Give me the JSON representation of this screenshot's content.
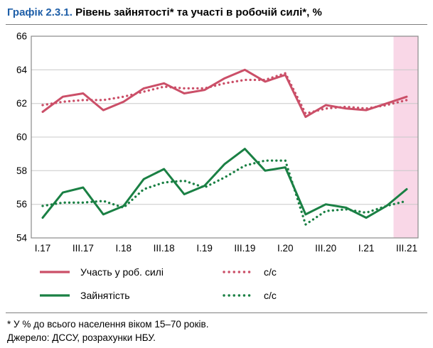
{
  "header": {
    "prefix": "Графік 2.3.1.",
    "title": " Рівень зайнятості* та участі в робочій силі*, %"
  },
  "legend": [
    {
      "label": "Участь у роб. силі",
      "style": "solid",
      "color": "#cb4f68"
    },
    {
      "label": "с/с",
      "style": "dotted",
      "color": "#cb4f68"
    },
    {
      "label": "Зайнятість",
      "style": "solid",
      "color": "#1a8044"
    },
    {
      "label": "с/с",
      "style": "dotted",
      "color": "#1a8044"
    }
  ],
  "footnotes": {
    "note": "* У % до всього населення віком 15–70 років.",
    "source": "Джерело: ДССУ, розрахунки НБУ."
  },
  "chart_data": {
    "type": "line",
    "x": [
      "I.17",
      "II.17",
      "III.17",
      "IV.17",
      "I.18",
      "II.18",
      "III.18",
      "IV.18",
      "I.19",
      "II.19",
      "III.19",
      "IV.19",
      "I.20",
      "II.20",
      "III.20",
      "IV.20",
      "I.21",
      "II.21",
      "III.21"
    ],
    "x_ticks": [
      {
        "index": 0,
        "label": "I.17"
      },
      {
        "index": 2,
        "label": "III.17"
      },
      {
        "index": 4,
        "label": "I.18"
      },
      {
        "index": 6,
        "label": "III.18"
      },
      {
        "index": 8,
        "label": "I.19"
      },
      {
        "index": 10,
        "label": "III.19"
      },
      {
        "index": 12,
        "label": "I.20"
      },
      {
        "index": 14,
        "label": "III.20"
      },
      {
        "index": 16,
        "label": "I.21"
      },
      {
        "index": 18,
        "label": "III.21"
      }
    ],
    "ylim": [
      54,
      66
    ],
    "yticks": [
      54,
      56,
      58,
      60,
      62,
      64,
      66
    ],
    "grid": true,
    "legend_position": "bottom",
    "highlight_band": {
      "from_index": 17.35,
      "to_end": true,
      "color": "#f9d7e7"
    },
    "series": [
      {
        "id": "participation",
        "name": "Участь у роб. силі",
        "style": "solid",
        "color": "#cb4f68",
        "values": [
          61.5,
          62.4,
          62.6,
          61.6,
          62.1,
          62.9,
          63.2,
          62.6,
          62.8,
          63.5,
          64.0,
          63.3,
          63.7,
          61.2,
          61.9,
          61.7,
          61.6,
          62.0,
          62.4
        ]
      },
      {
        "id": "employment",
        "name": "Зайнятість",
        "style": "solid",
        "color": "#1a8044",
        "values": [
          55.2,
          56.7,
          57.0,
          55.4,
          55.9,
          57.5,
          58.1,
          56.6,
          57.1,
          58.4,
          59.3,
          58.0,
          58.2,
          55.4,
          56.0,
          55.8,
          55.2,
          55.9,
          56.9
        ]
      },
      {
        "id": "participation-sa",
        "name": "с/с",
        "style": "dotted",
        "color": "#cb4f68",
        "values": [
          61.9,
          62.1,
          62.2,
          62.2,
          62.4,
          62.7,
          63.0,
          62.9,
          62.9,
          63.2,
          63.4,
          63.4,
          63.8,
          61.4,
          61.7,
          61.8,
          61.7,
          61.9,
          62.2
        ]
      },
      {
        "id": "employment-sa",
        "name": "с/с",
        "style": "dotted",
        "color": "#1a8044",
        "values": [
          55.9,
          56.1,
          56.1,
          56.2,
          55.8,
          56.9,
          57.3,
          57.4,
          57.0,
          57.6,
          58.3,
          58.6,
          58.6,
          54.8,
          55.6,
          55.7,
          55.5,
          55.9,
          56.2
        ]
      }
    ],
    "axis_colors": {
      "grid": "#c8c8c8",
      "frame": "#8a8a8a",
      "text": "#000000"
    }
  }
}
